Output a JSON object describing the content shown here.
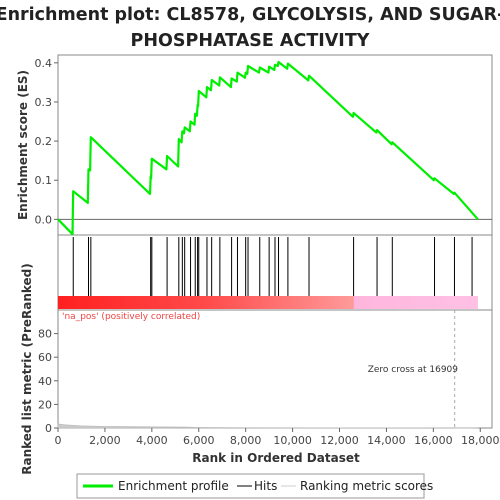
{
  "chart_data": {
    "type": "line",
    "title_line1": "Enrichment plot: CL8578, GLYCOLYSIS, AND SUGAR-",
    "title_line2": "PHOSPHATASE ACTIVITY",
    "xlabel": "Rank in Ordered Dataset",
    "ylabel_top": "Enrichment score (ES)",
    "ylabel_bottom": "Ranked list metric (PreRanked)",
    "x_ticks": [
      "0",
      "2,000",
      "4,000",
      "6,000",
      "8,000",
      "10,000",
      "12,000",
      "14,000",
      "16,000",
      "18,000"
    ],
    "x_tick_values": [
      0,
      2000,
      4000,
      6000,
      8000,
      10000,
      12000,
      14000,
      16000,
      18000
    ],
    "xlim": [
      0,
      18500
    ],
    "es_ylim": [
      -0.04,
      0.42
    ],
    "es_y_ticks": [
      "0.0",
      "0.1",
      "0.2",
      "0.3",
      "0.4"
    ],
    "es_y_tick_values": [
      0.0,
      0.1,
      0.2,
      0.3,
      0.4
    ],
    "metric_ylim": [
      0,
      100
    ],
    "metric_y_ticks": [
      "0",
      "20",
      "40",
      "60",
      "80"
    ],
    "metric_y_tick_values": [
      0,
      20,
      40,
      60,
      80
    ],
    "pos_label": "'na_pos' (positively correlated)",
    "zero_cross_label": "Zero cross at 16909",
    "zero_cross": 16909,
    "total_ranks": 17900,
    "hits": [
      650,
      1300,
      1400,
      3950,
      4000,
      4650,
      5150,
      5300,
      5400,
      5650,
      5850,
      5950,
      6000,
      6350,
      6550,
      6900,
      7400,
      7650,
      8000,
      8100,
      8600,
      9000,
      9250,
      9400,
      9800,
      10700,
      12600,
      13600,
      14250,
      16050,
      16900,
      17650
    ],
    "es_points": [
      [
        0,
        0.0
      ],
      [
        620,
        -0.038
      ],
      [
        650,
        0.072
      ],
      [
        1270,
        0.042
      ],
      [
        1300,
        0.128
      ],
      [
        1370,
        0.125
      ],
      [
        1400,
        0.21
      ],
      [
        3920,
        0.065
      ],
      [
        3950,
        0.11
      ],
      [
        3970,
        0.105
      ],
      [
        4000,
        0.155
      ],
      [
        4620,
        0.128
      ],
      [
        4650,
        0.162
      ],
      [
        5120,
        0.135
      ],
      [
        5150,
        0.205
      ],
      [
        5270,
        0.197
      ],
      [
        5300,
        0.225
      ],
      [
        5370,
        0.22
      ],
      [
        5400,
        0.235
      ],
      [
        5620,
        0.225
      ],
      [
        5650,
        0.25
      ],
      [
        5820,
        0.242
      ],
      [
        5850,
        0.27
      ],
      [
        5920,
        0.265
      ],
      [
        5950,
        0.292
      ],
      [
        5970,
        0.29
      ],
      [
        6000,
        0.328
      ],
      [
        6320,
        0.312
      ],
      [
        6350,
        0.338
      ],
      [
        6520,
        0.33
      ],
      [
        6550,
        0.356
      ],
      [
        6870,
        0.342
      ],
      [
        6900,
        0.363
      ],
      [
        7370,
        0.338
      ],
      [
        7400,
        0.36
      ],
      [
        7620,
        0.352
      ],
      [
        7650,
        0.375
      ],
      [
        7970,
        0.362
      ],
      [
        8000,
        0.375
      ],
      [
        8070,
        0.372
      ],
      [
        8100,
        0.392
      ],
      [
        8570,
        0.375
      ],
      [
        8600,
        0.388
      ],
      [
        8970,
        0.375
      ],
      [
        9000,
        0.39
      ],
      [
        9220,
        0.382
      ],
      [
        9250,
        0.395
      ],
      [
        9370,
        0.392
      ],
      [
        9400,
        0.402
      ],
      [
        9770,
        0.385
      ],
      [
        9800,
        0.398
      ],
      [
        10670,
        0.355
      ],
      [
        10700,
        0.367
      ],
      [
        12570,
        0.262
      ],
      [
        12600,
        0.272
      ],
      [
        13570,
        0.222
      ],
      [
        13600,
        0.228
      ],
      [
        14220,
        0.192
      ],
      [
        14250,
        0.197
      ],
      [
        16020,
        0.1
      ],
      [
        16050,
        0.105
      ],
      [
        16870,
        0.065
      ],
      [
        16900,
        0.068
      ],
      [
        17900,
        0.0
      ]
    ],
    "legend": [
      "Enrichment profile",
      "Hits",
      "Ranking metric scores"
    ],
    "colors": {
      "profile": "#00ee00",
      "hits": "#000000",
      "positive_band": "#ff2a2a",
      "negative_band": "#ff66cc",
      "metric_fill": "#cccccc",
      "pos_label": "#ee4444",
      "zero_cross_line": "#aaaaaa",
      "zero_line": "#666666",
      "frame": "#888888"
    }
  }
}
